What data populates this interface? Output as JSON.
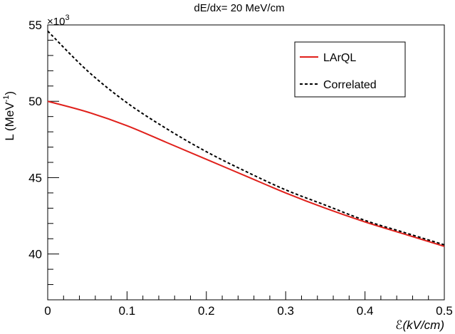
{
  "chart_data": {
    "type": "line",
    "title": "dE/dx= 20 MeV/cm",
    "xlabel": "ℰ(kV/cm)",
    "ylabel": "L (MeV",
    "ylabel_superscript": "-1",
    "ylabel_close": ")",
    "y_multiplier": "×10",
    "y_multiplier_exp": "3",
    "xlim": [
      0,
      0.5
    ],
    "ylim": [
      37,
      55
    ],
    "x_ticks": [
      0,
      0.1,
      0.2,
      0.3,
      0.4,
      0.5
    ],
    "x_tick_labels": [
      "0",
      "0.1",
      "0.2",
      "0.3",
      "0.4",
      "0.5"
    ],
    "y_ticks": [
      40,
      45,
      50,
      55
    ],
    "y_tick_labels": [
      "40",
      "45",
      "50",
      "55"
    ],
    "legend_position": "top-right",
    "series": [
      {
        "name": "LArQL",
        "style": "solid",
        "color": "#e0201b",
        "x": [
          0,
          0.05,
          0.1,
          0.15,
          0.2,
          0.25,
          0.3,
          0.35,
          0.4,
          0.45,
          0.5
        ],
        "y": [
          50.0,
          49.3,
          48.4,
          47.3,
          46.2,
          45.1,
          44.0,
          43.0,
          42.1,
          41.3,
          40.5
        ]
      },
      {
        "name": "Correlated",
        "style": "dashed",
        "color": "#000000",
        "x": [
          0,
          0.05,
          0.1,
          0.15,
          0.2,
          0.25,
          0.3,
          0.35,
          0.4,
          0.45,
          0.5
        ],
        "y": [
          54.6,
          52.0,
          49.9,
          48.2,
          46.7,
          45.4,
          44.2,
          43.2,
          42.2,
          41.4,
          40.6
        ]
      }
    ]
  }
}
